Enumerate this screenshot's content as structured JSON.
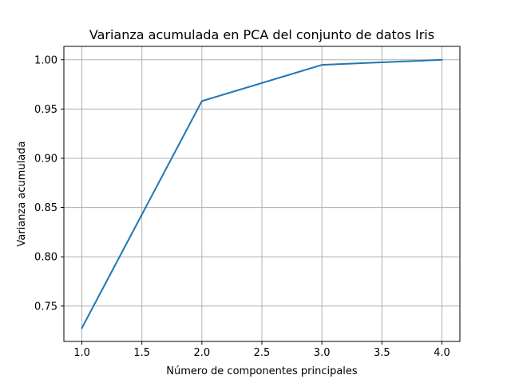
{
  "chart_data": {
    "type": "line",
    "title": "Varianza acumulada en PCA del conjunto de datos Iris",
    "xlabel": "Número de componentes principales",
    "ylabel": "Varianza acumulada",
    "x": [
      1,
      2,
      3,
      4
    ],
    "series": [
      {
        "values": [
          0.7277,
          0.9581,
          0.9948,
          1.0
        ],
        "color": "#1f77b4"
      }
    ],
    "xlim": [
      0.85,
      4.15
    ],
    "ylim": [
      0.7141,
      1.0136
    ],
    "xticks": [
      1.0,
      1.5,
      2.0,
      2.5,
      3.0,
      3.5,
      4.0
    ],
    "xtick_labels": [
      "1.0",
      "1.5",
      "2.0",
      "2.5",
      "3.0",
      "3.5",
      "4.0"
    ],
    "yticks": [
      0.75,
      0.8,
      0.85,
      0.9,
      0.95,
      1.0
    ],
    "ytick_labels": [
      "0.75",
      "0.80",
      "0.85",
      "0.90",
      "0.95",
      "1.00"
    ],
    "grid": true,
    "legend": "none",
    "grid_color": "#b0b0b0"
  }
}
